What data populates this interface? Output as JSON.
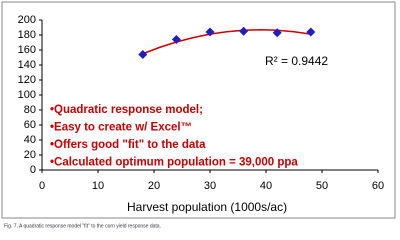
{
  "chart_data": {
    "type": "scatter",
    "xlabel": "Harvest population (1000s/ac)",
    "xlim": [
      0,
      60
    ],
    "xticks": [
      0,
      10,
      20,
      30,
      40,
      50,
      60
    ],
    "ylim": [
      0,
      200
    ],
    "yticks": [
      0,
      20,
      40,
      60,
      80,
      100,
      120,
      140,
      160,
      180,
      200
    ],
    "series": [
      {
        "color": "#1f1fbf",
        "marker": "diamond",
        "x": [
          18,
          24,
          30,
          36,
          42,
          48
        ],
        "values": [
          154,
          174,
          184,
          185,
          183,
          184
        ]
      }
    ],
    "trendline": {
      "color": "#cc0000",
      "x": [
        18,
        21,
        24,
        27,
        30,
        33,
        36,
        39,
        42,
        45,
        48
      ],
      "values": [
        155.0,
        163.5,
        170.7,
        176.5,
        181.1,
        184.4,
        186.3,
        187.0,
        186.3,
        184.4,
        181.1
      ]
    },
    "r2_label": "R² = 0.9442",
    "bullets": [
      "•Quadratic response model;",
      "•Easy to create w/ Excel™",
      "•Offers good \"fit\" to the data",
      "•Calculated optimum population = 39,000 ppa"
    ],
    "bullet_color": "#cc0000",
    "caption": "Fig. 7. A quadratic response model \"fit\" to the corn yield response data."
  }
}
